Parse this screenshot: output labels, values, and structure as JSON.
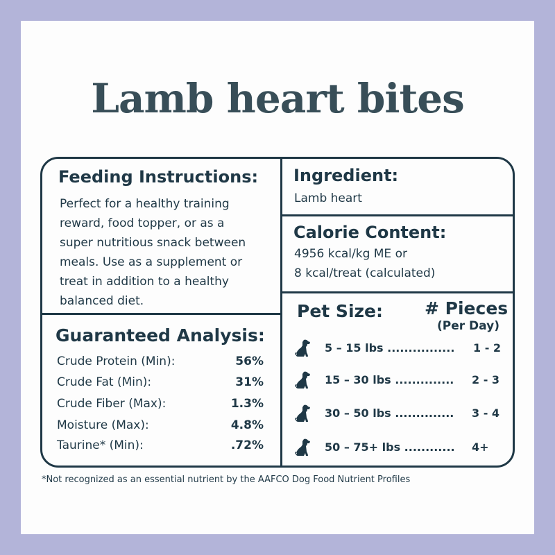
{
  "title": "Lamb heart bites",
  "feeding": {
    "heading": "Feeding Instructions:",
    "lines": [
      "Perfect for a healthy training",
      "reward, food topper, or as a",
      "super nutritious snack between",
      "meals. Use as a supplement or",
      "treat in addition to a healthy",
      "balanced diet."
    ]
  },
  "ingredient": {
    "heading": "Ingredient:",
    "value": "Lamb heart"
  },
  "calorie": {
    "heading": "Calorie Content:",
    "line1": "4956 kcal/kg ME or",
    "line2": "8 kcal/treat (calculated)"
  },
  "analysis": {
    "heading": "Guaranteed Analysis:",
    "rows": [
      {
        "label": "Crude Protein (Min):",
        "value": "56%"
      },
      {
        "label": "Crude Fat (Min):",
        "value": "31%"
      },
      {
        "label": "Crude Fiber (Max):",
        "value": "1.3%"
      },
      {
        "label": "Moisture (Max):",
        "value": "4.8%"
      },
      {
        "label": "Taurine* (Min):",
        "value": ".72%"
      }
    ]
  },
  "feeding_chart": {
    "pet_size_heading": "Pet Size:",
    "pieces_heading": "# Pieces",
    "pieces_subheading": "(Per Day)",
    "rows": [
      {
        "range": "5 – 15 lbs ................",
        "pieces": "1 - 2"
      },
      {
        "range": "15 – 30 lbs ..............",
        "pieces": "2 - 3"
      },
      {
        "range": "30 – 50 lbs ..............",
        "pieces": "3 - 4"
      },
      {
        "range": "50 – 75+ lbs ............",
        "pieces": "4+"
      }
    ],
    "icon": "sitting-dog-icon"
  },
  "footnote": "*Not recognized as an essential nutrient by the AAFCO Dog Food Nutrient Profiles",
  "colors": {
    "background": "#b3b4d9",
    "card": "#fdfdfd",
    "ink": "#1f3846",
    "title": "#384e58"
  }
}
